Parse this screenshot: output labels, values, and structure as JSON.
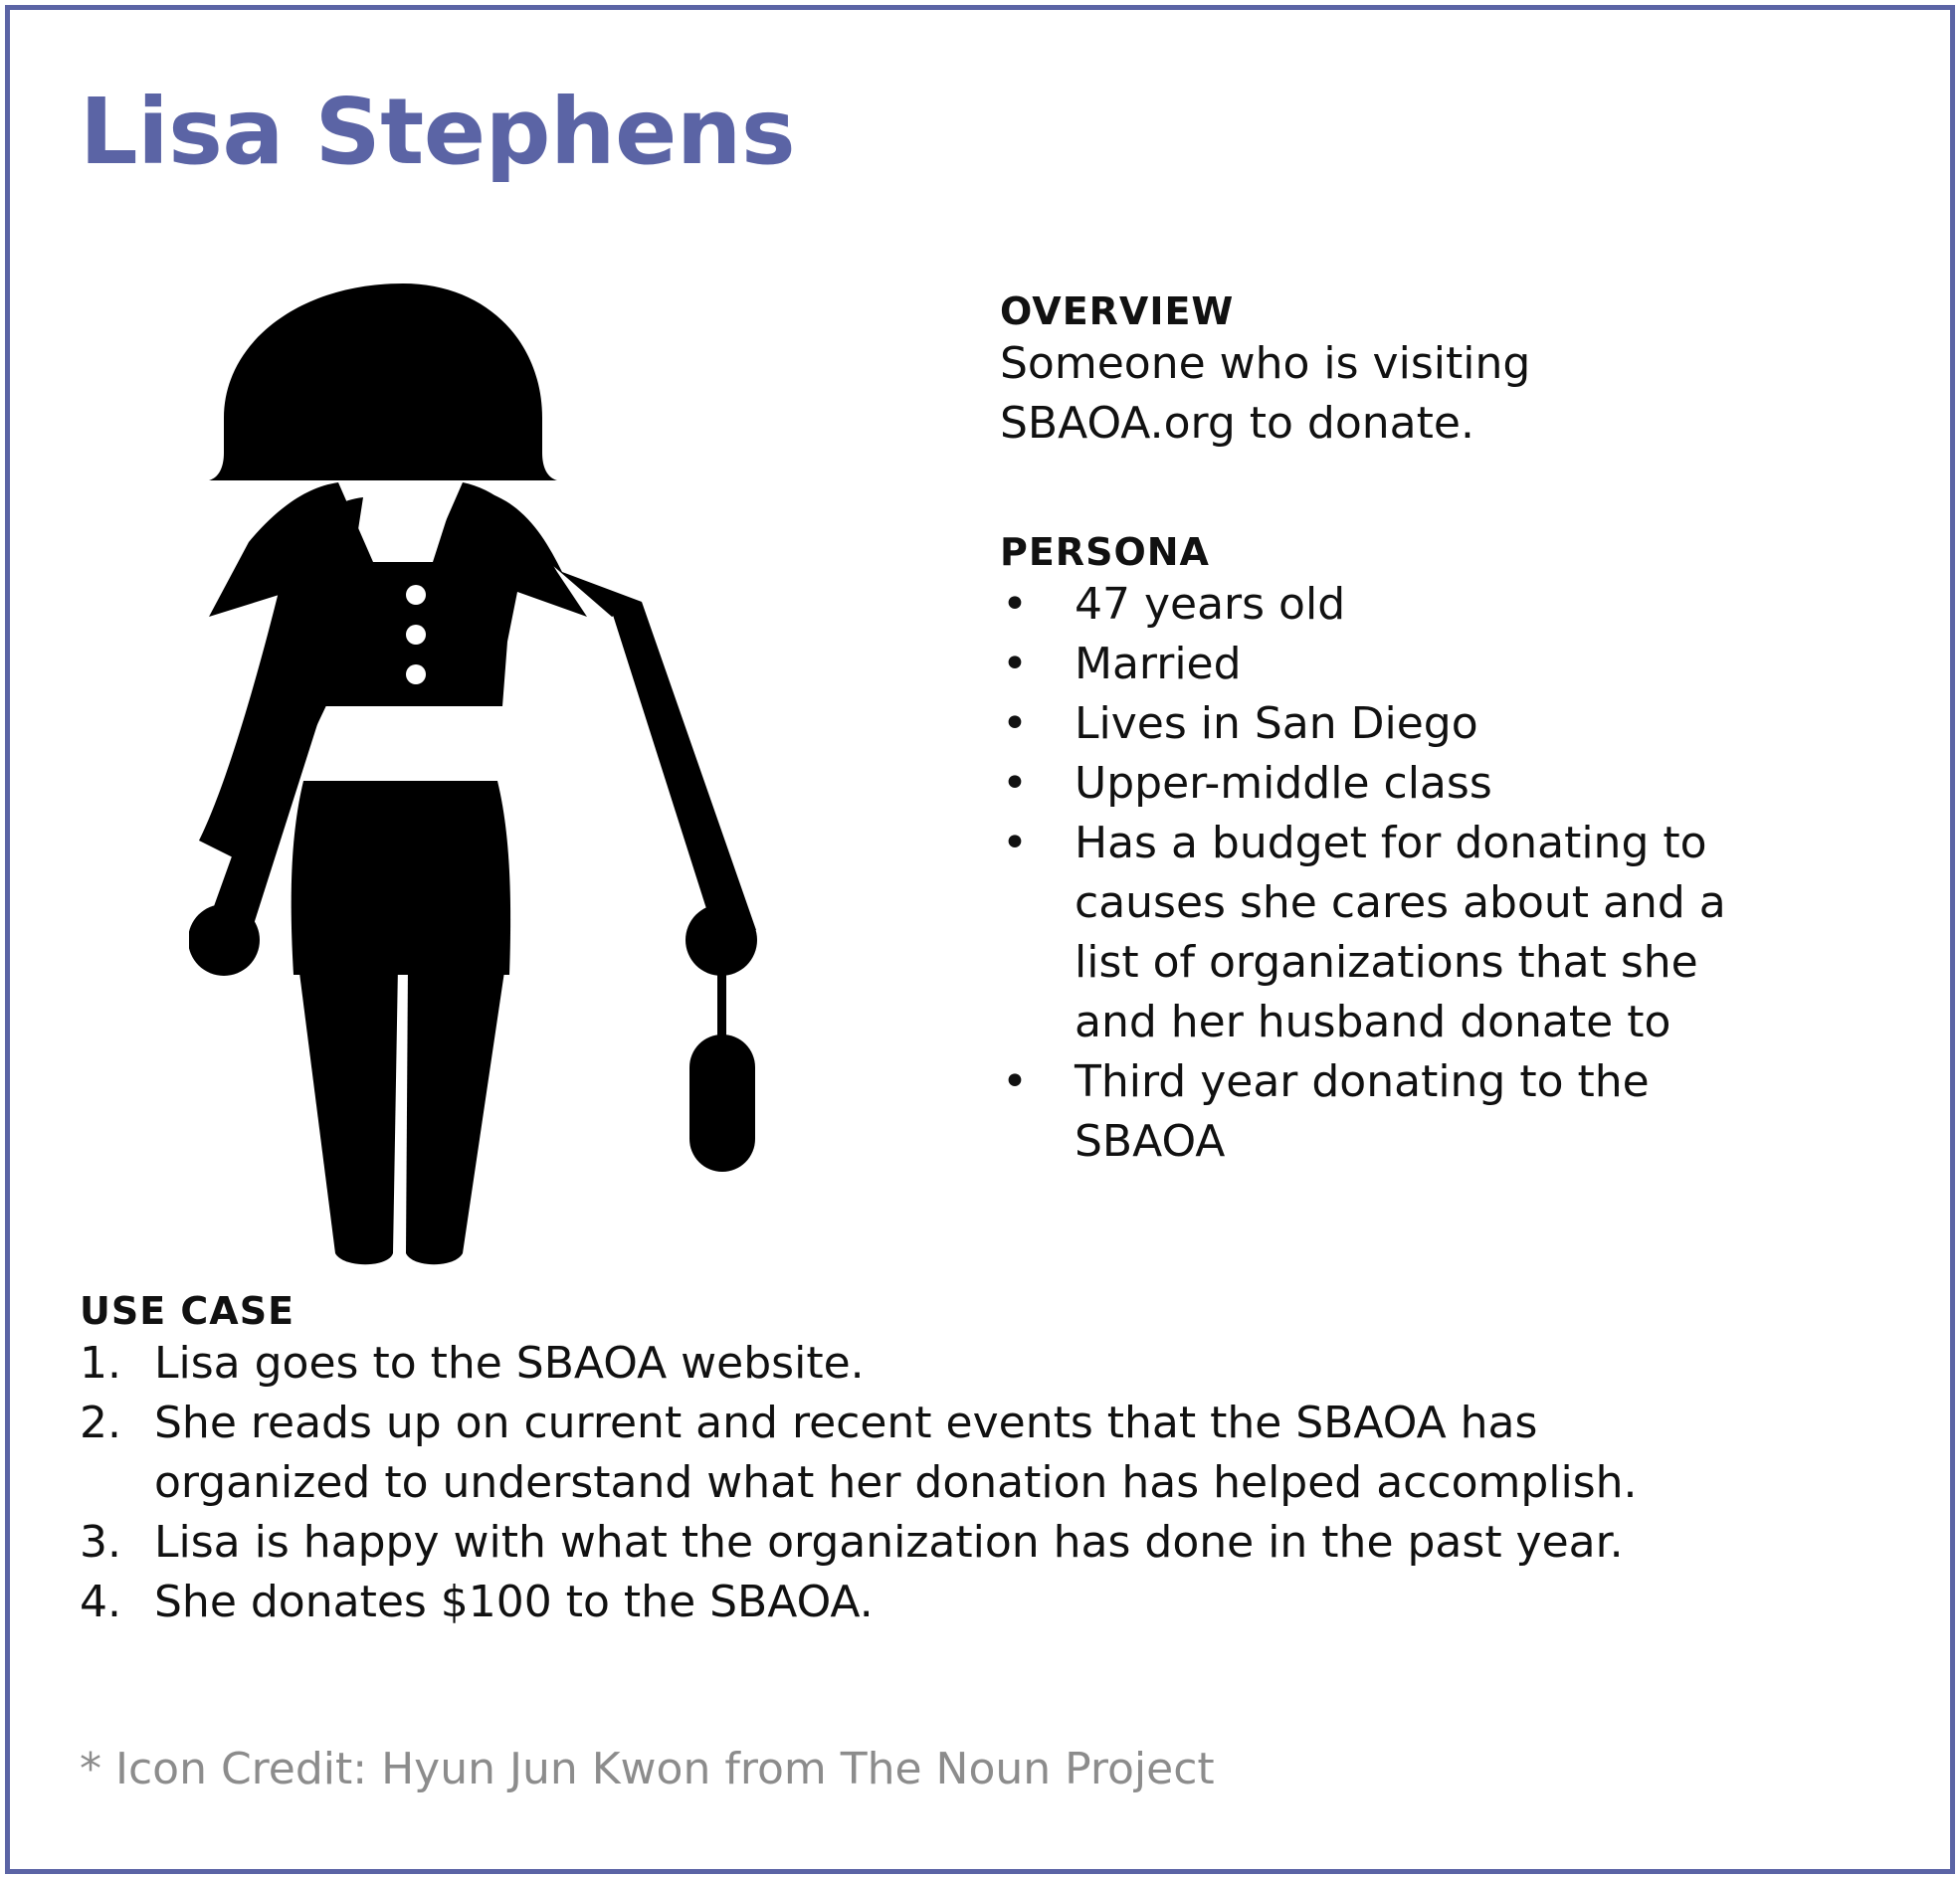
{
  "persona_name": "Lisa Stephens",
  "illustration_icon": "woman-with-handbag-icon",
  "accent_color": "#5b64a5",
  "overview": {
    "heading": "OVERVIEW",
    "lines": [
      "Someone who is visiting",
      "SBAOA.org to donate."
    ]
  },
  "persona": {
    "heading": "PERSONA",
    "bullet": "•",
    "items": [
      {
        "lines": [
          "47 years old"
        ]
      },
      {
        "lines": [
          "Married"
        ]
      },
      {
        "lines": [
          "Lives in San Diego"
        ]
      },
      {
        "lines": [
          "Upper-middle class"
        ]
      },
      {
        "lines": [
          "Has a budget for donating to",
          "causes she cares about and a",
          "list of organizations that she",
          "and her husband donate to"
        ]
      },
      {
        "lines": [
          "Third year donating to the",
          "SBAOA"
        ]
      }
    ]
  },
  "use_case": {
    "heading": "USE CASE",
    "steps": [
      {
        "number": "1.",
        "lines": [
          "Lisa goes to the SBAOA website."
        ]
      },
      {
        "number": "2.",
        "lines": [
          "She reads up on current and recent events that the SBAOA has",
          "organized to understand what her donation has helped accomplish."
        ]
      },
      {
        "number": "3.",
        "lines": [
          "Lisa is happy with what the organization has done in the past year."
        ]
      },
      {
        "number": "4.",
        "lines": [
          "She donates $100 to the SBAOA."
        ]
      }
    ]
  },
  "credit": "* Icon Credit: Hyun Jun Kwon from The Noun Project"
}
